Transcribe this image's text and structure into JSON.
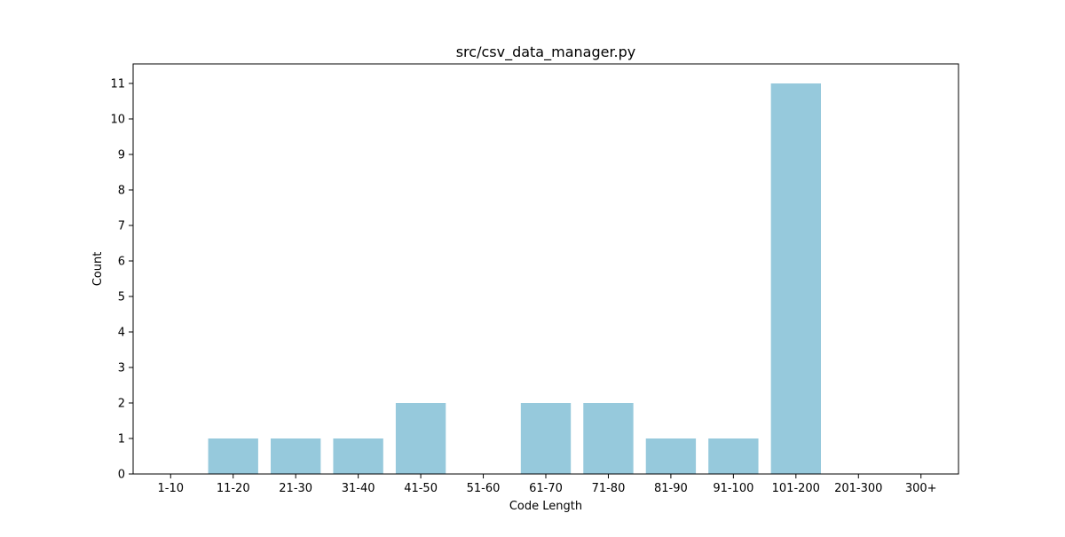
{
  "chart_data": {
    "type": "bar",
    "title": "src/csv_data_manager.py",
    "xlabel": "Code Length",
    "ylabel": "Count",
    "categories": [
      "1-10",
      "11-20",
      "21-30",
      "31-40",
      "41-50",
      "51-60",
      "61-70",
      "71-80",
      "81-90",
      "91-100",
      "101-200",
      "201-300",
      "300+"
    ],
    "values": [
      0,
      1,
      1,
      1,
      2,
      0,
      2,
      2,
      1,
      1,
      11,
      0,
      0
    ],
    "yticks": [
      0,
      1,
      2,
      3,
      4,
      5,
      6,
      7,
      8,
      9,
      10,
      11
    ],
    "ylim": [
      0,
      11.55
    ],
    "grid": false,
    "bar_color": "#96c9dc"
  }
}
